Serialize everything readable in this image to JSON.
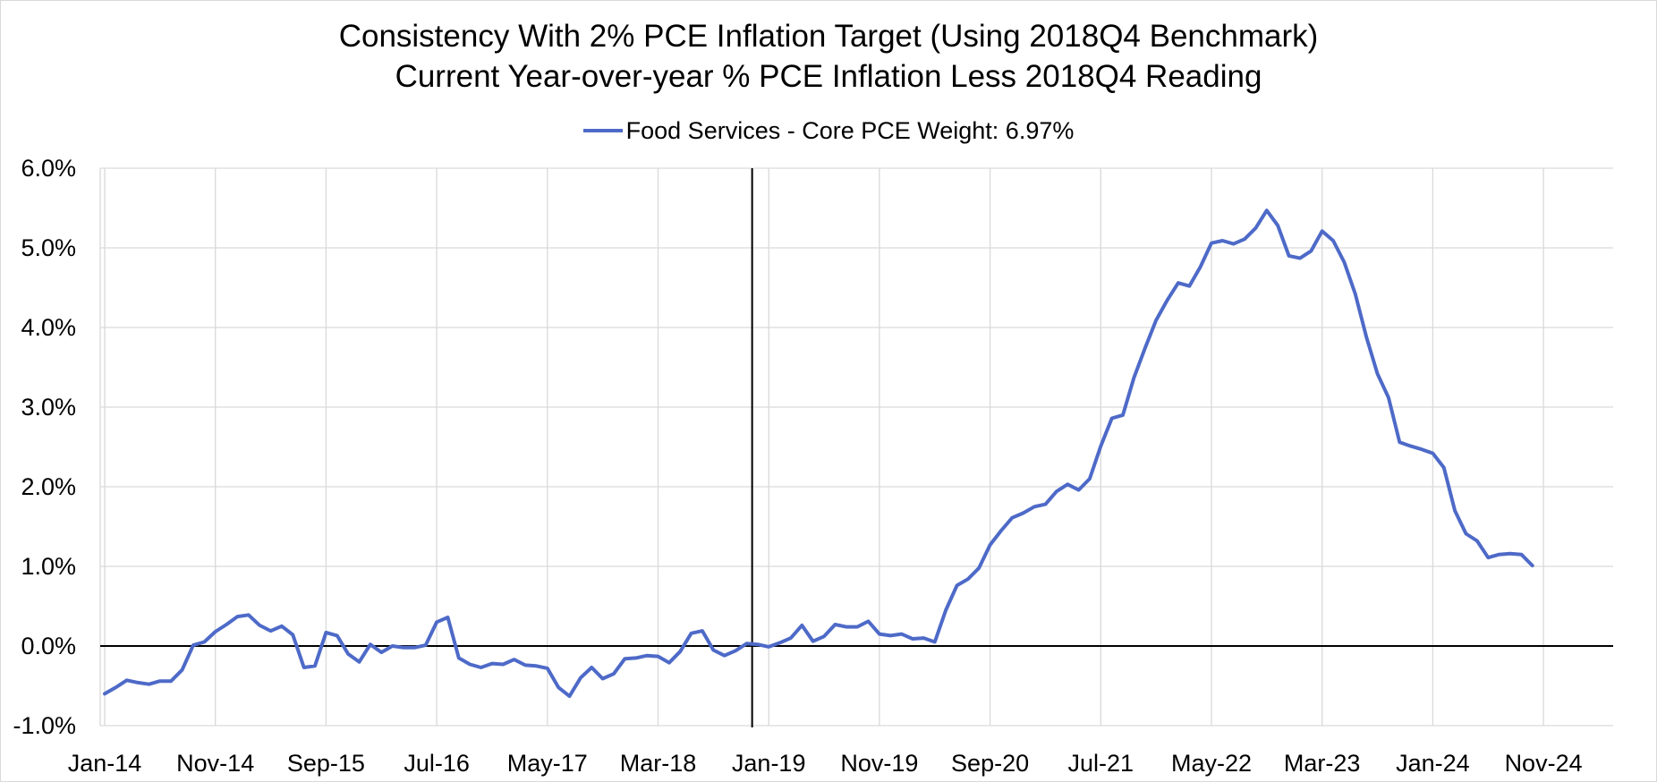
{
  "chart_data": {
    "type": "line",
    "title": "Consistency With 2% PCE Inflation Target (Using 2018Q4 Benchmark)",
    "subtitle": "Current Year-over-year % PCE Inflation Less 2018Q4 Reading",
    "xlabel": "",
    "ylabel": "",
    "legend_position": "top-center",
    "grid": true,
    "color": "#4e6ac8",
    "ylim": [
      -1.0,
      6.0
    ],
    "yticks": [
      -1.0,
      0.0,
      1.0,
      2.0,
      3.0,
      4.0,
      5.0,
      6.0
    ],
    "ytick_labels": [
      "-1.0%",
      "0.0%",
      "1.0%",
      "2.0%",
      "3.0%",
      "4.0%",
      "5.0%",
      "6.0%"
    ],
    "x_start": "Jan-14",
    "x_end": "Dec-24",
    "xtick_labels": [
      "Jan-14",
      "Nov-14",
      "Sep-15",
      "Jul-16",
      "May-17",
      "Mar-18",
      "Jan-19",
      "Nov-19",
      "Sep-20",
      "Jul-21",
      "May-22",
      "Mar-23",
      "Jan-24",
      "Nov-24"
    ],
    "xtick_month_index": [
      0,
      10,
      20,
      30,
      40,
      50,
      60,
      70,
      80,
      90,
      100,
      110,
      120,
      130
    ],
    "reference_line": {
      "label": "2018Q4",
      "month_index": 58.5
    },
    "series": [
      {
        "name": "Food Services - Core PCE Weight: 6.97%",
        "start": "Jan-14",
        "values": [
          -0.6,
          -0.52,
          -0.43,
          -0.46,
          -0.48,
          -0.44,
          -0.44,
          -0.3,
          0.01,
          0.05,
          0.18,
          0.27,
          0.37,
          0.39,
          0.26,
          0.19,
          0.25,
          0.14,
          -0.27,
          -0.25,
          0.17,
          0.13,
          -0.1,
          -0.2,
          0.02,
          -0.08,
          0.0,
          -0.02,
          -0.02,
          0.01,
          0.3,
          0.36,
          -0.15,
          -0.23,
          -0.27,
          -0.22,
          -0.23,
          -0.17,
          -0.24,
          -0.25,
          -0.28,
          -0.52,
          -0.63,
          -0.4,
          -0.27,
          -0.41,
          -0.35,
          -0.16,
          -0.15,
          -0.12,
          -0.13,
          -0.21,
          -0.07,
          0.16,
          0.19,
          -0.05,
          -0.12,
          -0.06,
          0.03,
          0.02,
          -0.01,
          0.04,
          0.1,
          0.26,
          0.06,
          0.12,
          0.27,
          0.24,
          0.24,
          0.31,
          0.15,
          0.13,
          0.15,
          0.09,
          0.1,
          0.05,
          0.45,
          0.76,
          0.84,
          0.98,
          1.27,
          1.45,
          1.61,
          1.67,
          1.75,
          1.78,
          1.94,
          2.03,
          1.96,
          2.1,
          2.51,
          2.86,
          2.9,
          3.37,
          3.74,
          4.09,
          4.34,
          4.56,
          4.52,
          4.76,
          5.06,
          5.09,
          5.05,
          5.11,
          5.25,
          5.47,
          5.28,
          4.9,
          4.87,
          4.96,
          5.21,
          5.09,
          4.82,
          4.42,
          3.88,
          3.42,
          3.12,
          2.56,
          2.51,
          2.47,
          2.42,
          2.24,
          1.7,
          1.41,
          1.32,
          1.11,
          1.15,
          1.16,
          1.15,
          1.01
        ]
      }
    ]
  }
}
